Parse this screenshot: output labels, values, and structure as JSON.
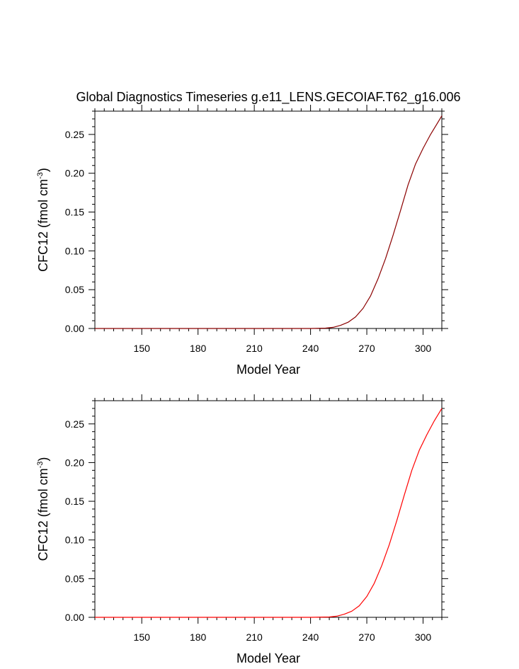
{
  "figure_title": "Global Diagnostics Timeseries g.e11_LENS.GECOIAF.T62_g16.006",
  "chart_data": [
    {
      "type": "line",
      "title": "Global Diagnostics Timeseries g.e11_LENS.GECOIAF.T62_g16.006",
      "xlabel": "Model Year",
      "ylabel_main": "CFC12 (fmol cm",
      "ylabel_sup": "-3",
      "ylabel_close": ")",
      "xlim": [
        125,
        310
      ],
      "ylim": [
        0,
        0.28
      ],
      "x_ticks": [
        150,
        180,
        210,
        240,
        270,
        300
      ],
      "x_tick_labels": [
        "150",
        "180",
        "210",
        "240",
        "270",
        "300"
      ],
      "y_ticks": [
        0,
        0.05,
        0.1,
        0.15,
        0.2,
        0.25
      ],
      "y_tick_labels": [
        "0.00",
        "0.05",
        "0.10",
        "0.15",
        "0.20",
        "0.25"
      ],
      "grid": false,
      "series": [
        {
          "color": "#8b0000",
          "x": [
            125,
            200,
            240,
            248,
            252,
            256,
            260,
            264,
            268,
            272,
            276,
            280,
            284,
            288,
            292,
            296,
            300,
            304,
            308,
            310
          ],
          "y": [
            0,
            0,
            0,
            0.0005,
            0.0015,
            0.004,
            0.008,
            0.015,
            0.026,
            0.042,
            0.064,
            0.09,
            0.12,
            0.152,
            0.185,
            0.212,
            0.232,
            0.25,
            0.266,
            0.274
          ]
        }
      ]
    },
    {
      "type": "line",
      "title": "",
      "xlabel": "Model Year",
      "ylabel_main": "CFC12 (fmol cm",
      "ylabel_sup": "-3",
      "ylabel_close": ")",
      "xlim": [
        125,
        310
      ],
      "ylim": [
        0,
        0.28
      ],
      "x_ticks": [
        150,
        180,
        210,
        240,
        270,
        300
      ],
      "x_tick_labels": [
        "150",
        "180",
        "210",
        "240",
        "270",
        "300"
      ],
      "y_ticks": [
        0,
        0.05,
        0.1,
        0.15,
        0.2,
        0.25
      ],
      "y_tick_labels": [
        "0.00",
        "0.05",
        "0.10",
        "0.15",
        "0.20",
        "0.25"
      ],
      "grid": false,
      "series": [
        {
          "color": "#ff0000",
          "x": [
            125,
            200,
            240,
            250,
            254,
            258,
            262,
            266,
            270,
            274,
            278,
            282,
            286,
            290,
            294,
            298,
            302,
            306,
            310
          ],
          "y": [
            0,
            0,
            0,
            0.0005,
            0.0015,
            0.004,
            0.008,
            0.015,
            0.027,
            0.044,
            0.067,
            0.094,
            0.125,
            0.158,
            0.19,
            0.216,
            0.236,
            0.254,
            0.27
          ]
        }
      ]
    }
  ]
}
